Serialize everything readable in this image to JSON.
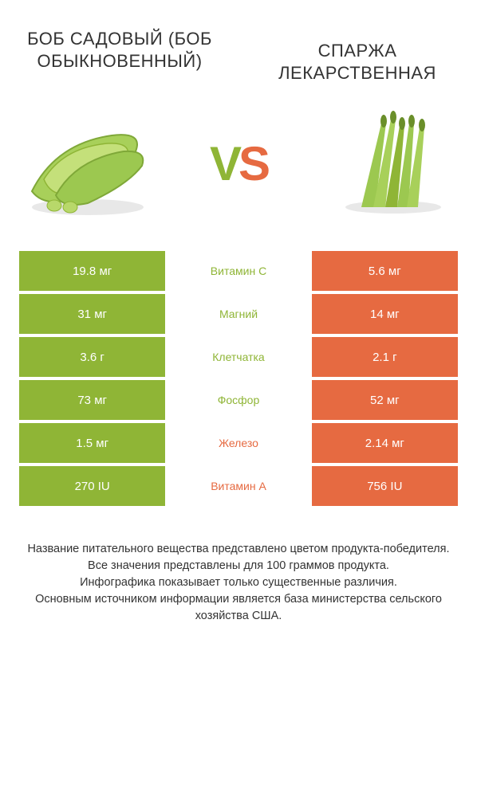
{
  "titles": {
    "left": "БОБ САДОВЫЙ (БОБ ОБЫКНОВЕННЫЙ)",
    "right": "СПАРЖА ЛЕКАРСТВЕННАЯ"
  },
  "vs": {
    "v": "V",
    "s": "S"
  },
  "colors": {
    "green": "#8fb536",
    "orange": "#e66a41",
    "white": "#ffffff",
    "text": "#333333"
  },
  "table": {
    "rows": [
      {
        "left": "19.8 мг",
        "label": "Витамин C",
        "right": "5.6 мг",
        "winner": "left"
      },
      {
        "left": "31 мг",
        "label": "Магний",
        "right": "14 мг",
        "winner": "left"
      },
      {
        "left": "3.6 г",
        "label": "Клетчатка",
        "right": "2.1 г",
        "winner": "left"
      },
      {
        "left": "73 мг",
        "label": "Фосфор",
        "right": "52 мг",
        "winner": "left"
      },
      {
        "left": "1.5 мг",
        "label": "Железо",
        "right": "2.14 мг",
        "winner": "right"
      },
      {
        "left": "270 IU",
        "label": "Витамин A",
        "right": "756 IU",
        "winner": "right"
      }
    ]
  },
  "footer": {
    "line1": "Название питательного вещества представлено цветом продукта-победителя.",
    "line2": "Все значения представлены для 100 граммов продукта.",
    "line3": "Инфографика показывает только существенные различия.",
    "line4": "Основным источником информации является база министерства сельского хозяйства США."
  }
}
